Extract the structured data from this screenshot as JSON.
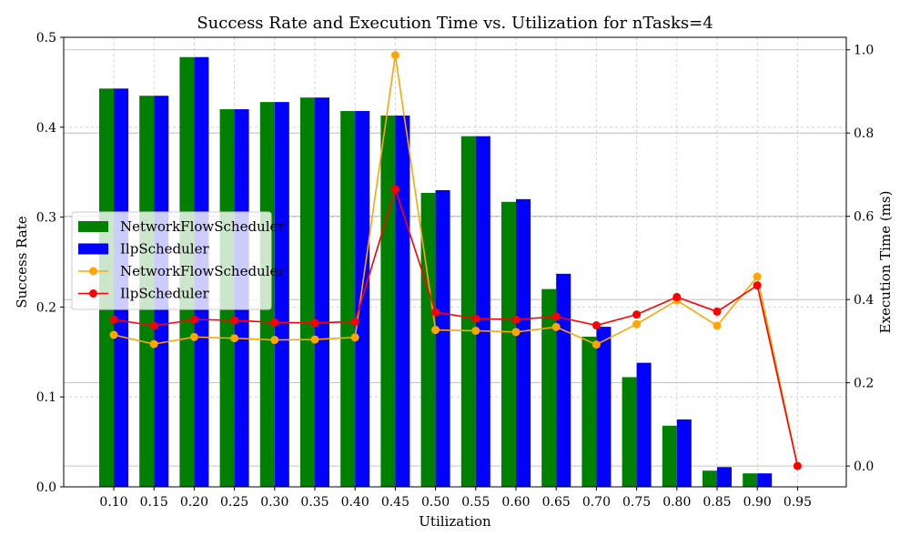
{
  "chart_data": {
    "type": "bar",
    "title": "Success Rate and Execution Time vs. Utilization for nTasks=4",
    "xlabel": "Utilization",
    "ylabel": "Success Rate",
    "y2label": "Execution Time (ms)",
    "categories": [
      "0.10",
      "0.15",
      "0.20",
      "0.25",
      "0.30",
      "0.35",
      "0.40",
      "0.45",
      "0.50",
      "0.55",
      "0.60",
      "0.65",
      "0.70",
      "0.75",
      "0.80",
      "0.85",
      "0.90",
      "0.95"
    ],
    "ylim": [
      0,
      0.5
    ],
    "y2lim": [
      -0.05,
      1.03
    ],
    "yticks": [
      "0.0",
      "0.1",
      "0.2",
      "0.3",
      "0.4",
      "0.5"
    ],
    "y2ticks": [
      "0.0",
      "0.2",
      "0.4",
      "0.6",
      "0.8",
      "1.0"
    ],
    "grid": true,
    "legend_position": "center-left",
    "bar_series": [
      {
        "name": "NetworkFlowScheduler",
        "color": "#008000",
        "values": [
          0.443,
          0.435,
          0.478,
          0.42,
          0.428,
          0.433,
          0.418,
          0.413,
          0.327,
          0.39,
          0.317,
          0.22,
          0.167,
          0.122,
          0.068,
          0.018,
          0.015,
          0.0
        ]
      },
      {
        "name": "IlpScheduler",
        "color": "#0000ff",
        "values": [
          0.443,
          0.435,
          0.478,
          0.42,
          0.428,
          0.433,
          0.418,
          0.413,
          0.33,
          0.39,
          0.32,
          0.237,
          0.178,
          0.138,
          0.075,
          0.022,
          0.015,
          0.0
        ]
      }
    ],
    "line_series": [
      {
        "name": "NetworkFlowScheduler",
        "color": "#ffa500",
        "values": [
          0.315,
          0.293,
          0.31,
          0.307,
          0.303,
          0.304,
          0.309,
          0.987,
          0.327,
          0.325,
          0.322,
          0.334,
          0.292,
          0.341,
          0.398,
          0.337,
          0.455,
          0.0
        ]
      },
      {
        "name": "IlpScheduler",
        "color": "#ff0000",
        "values": [
          0.352,
          0.337,
          0.352,
          0.35,
          0.345,
          0.344,
          0.347,
          0.665,
          0.37,
          0.354,
          0.352,
          0.359,
          0.338,
          0.364,
          0.406,
          0.371,
          0.434,
          0.0
        ]
      }
    ]
  }
}
